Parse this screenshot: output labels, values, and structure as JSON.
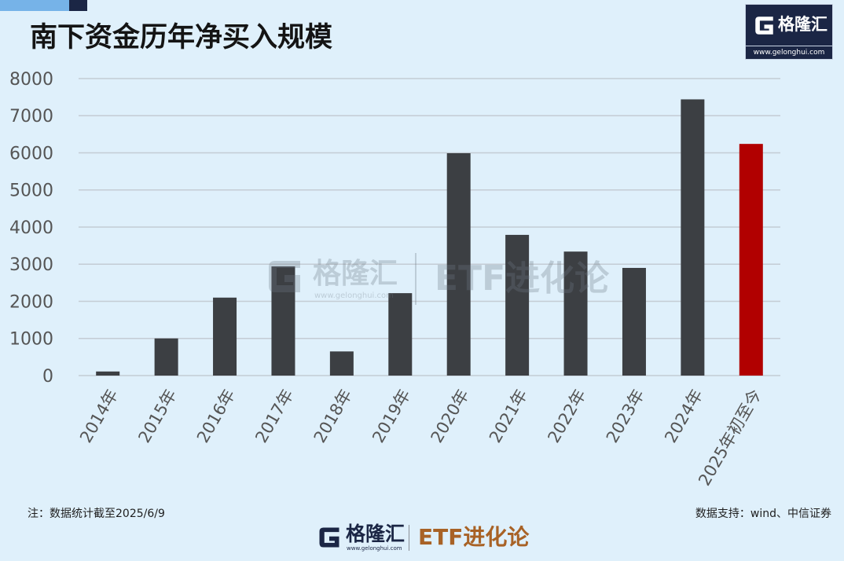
{
  "colors": {
    "background": "#dff0fb",
    "bar": "#3c3f43",
    "highlight": "#b10000",
    "grid": "#c4ccd4",
    "axis_text": "#555555",
    "navy": "#1b2645",
    "accent_brown": "#a86226"
  },
  "header_logo": {
    "icon": "gelonghui-g-icon",
    "brand": "格隆汇",
    "url": "www.gelonghui.com"
  },
  "watermark": {
    "icon": "gelonghui-g-icon",
    "brand": "格隆汇",
    "url": "www.gelonghui.com",
    "column": "ETF进化论"
  },
  "chart_data": {
    "type": "bar",
    "title": "南下资金历年净买入规模",
    "categories": [
      "2014年",
      "2015年",
      "2016年",
      "2017年",
      "2018年",
      "2019年",
      "2020年",
      "2021年",
      "2022年",
      "2023年",
      "2024年",
      "2025年初至今"
    ],
    "values": [
      110,
      1000,
      2100,
      2940,
      650,
      2220,
      5990,
      3790,
      3340,
      2900,
      7440,
      6240
    ],
    "ylim": [
      0,
      8000
    ],
    "yticks": [
      0,
      1000,
      2000,
      3000,
      4000,
      5000,
      6000,
      7000,
      8000
    ],
    "grid": true,
    "highlight_index": 11
  },
  "footer": {
    "note": "注：数据统计截至2025/6/9",
    "source": "数据支持：wind、中信证券"
  },
  "bottom_brand": {
    "icon": "gelonghui-g-icon",
    "brand": "格隆汇",
    "url": "www.gelonghui.com",
    "column": "ETF进化论"
  }
}
